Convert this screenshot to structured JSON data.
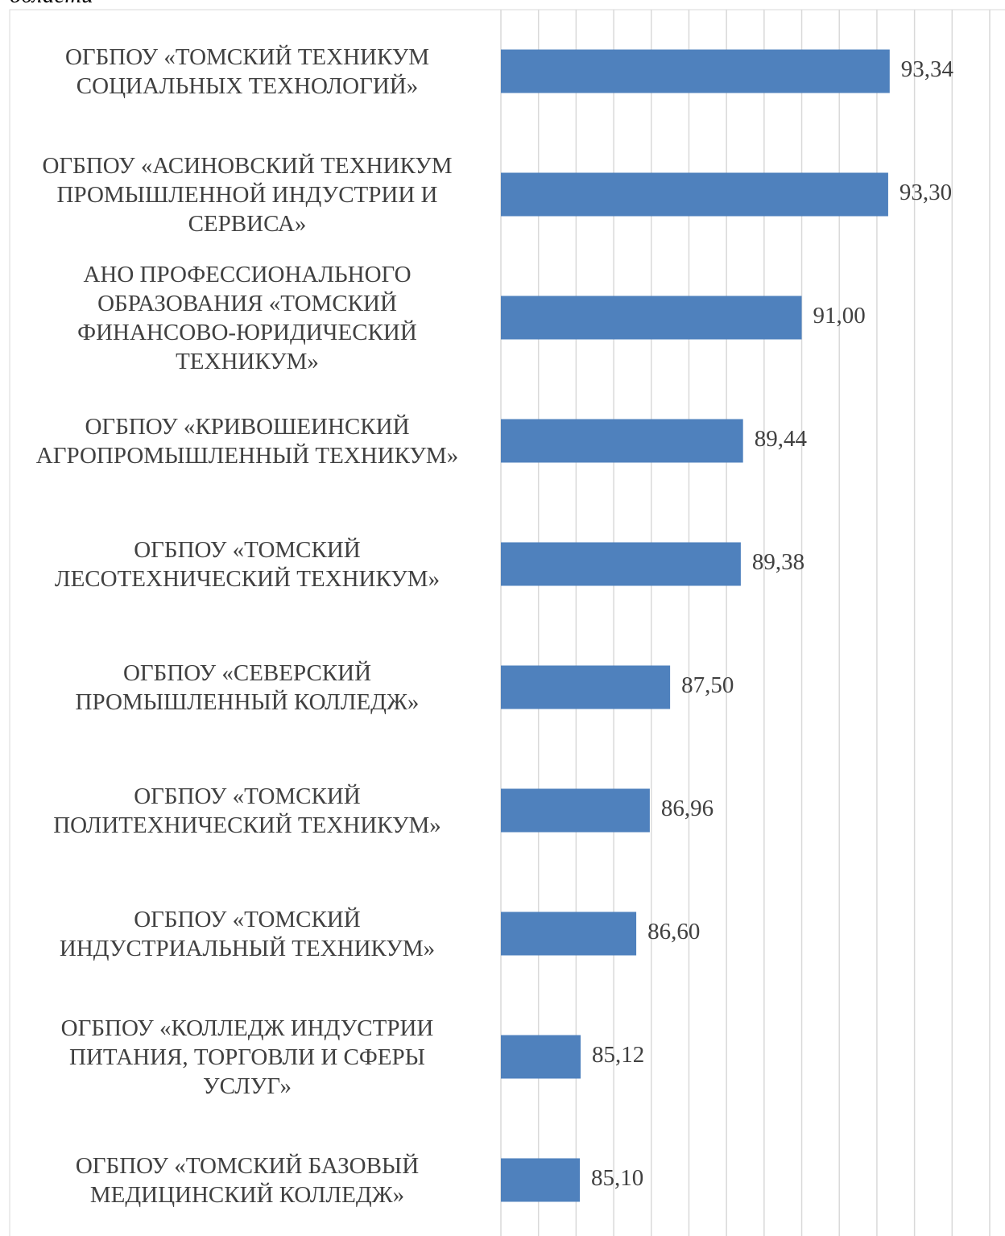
{
  "chart_data": {
    "type": "bar",
    "orientation": "horizontal",
    "title": "области",
    "categories": [
      "ОГБПОУ «ТОМСКИЙ ТЕХНИКУМ\nСОЦИАЛЬНЫХ ТЕХНОЛОГИЙ»",
      "ОГБПОУ «АСИНОВСКИЙ ТЕХНИКУМ\nПРОМЫШЛЕННОЙ ИНДУСТРИИ И\nСЕРВИСА»",
      "АНО ПРОФЕССИОНАЛЬНОГО\nОБРАЗОВАНИЯ «ТОМСКИЙ\nФИНАНСОВО-ЮРИДИЧЕСКИЙ\nТЕХНИКУМ»",
      "ОГБПОУ «КРИВОШЕИНСКИЙ\nАГРОПРОМЫШЛЕННЫЙ ТЕХНИКУМ»",
      "ОГБПОУ «ТОМСКИЙ\nЛЕСОТЕХНИЧЕСКИЙ ТЕХНИКУМ»",
      "ОГБПОУ «СЕВЕРСКИЙ\nПРОМЫШЛЕННЫЙ КОЛЛЕДЖ»",
      "ОГБПОУ «ТОМСКИЙ\nПОЛИТЕХНИЧЕСКИЙ ТЕХНИКУМ»",
      "ОГБПОУ «ТОМСКИЙ\nИНДУСТРИАЛЬНЫЙ ТЕХНИКУМ»",
      "ОГБПОУ «КОЛЛЕДЖ ИНДУСТРИИ\nПИТАНИЯ, ТОРГОВЛИ И СФЕРЫ\nУСЛУГ»",
      "ОГБПОУ «ТОМСКИЙ БАЗОВЫЙ\nМЕДИЦИНСКИЙ КОЛЛЕДЖ»"
    ],
    "values": [
      93.34,
      93.3,
      91.0,
      89.44,
      89.38,
      87.5,
      86.96,
      86.6,
      85.12,
      85.1
    ],
    "value_labels": [
      "93,34",
      "93,30",
      "91,00",
      "89,44",
      "89,38",
      "87,50",
      "86,96",
      "86,60",
      "85,12",
      "85,10"
    ],
    "color": "#4f81bd",
    "xlim": [
      83,
      96
    ],
    "xticks": [
      83,
      84,
      85,
      86,
      87,
      88,
      89,
      90,
      91,
      92,
      93,
      94,
      95,
      96
    ],
    "grid": true
  }
}
